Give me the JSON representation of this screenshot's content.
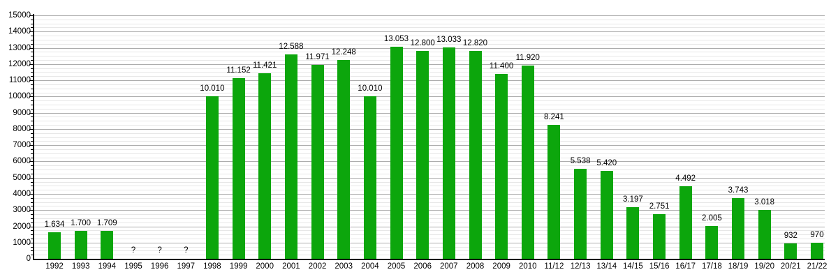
{
  "chart_data": {
    "type": "bar",
    "title": "",
    "xlabel": "",
    "ylabel": "",
    "categories": [
      "1992",
      "1993",
      "1994",
      "1995",
      "1996",
      "1997",
      "1998",
      "1999",
      "2000",
      "2001",
      "2002",
      "2003",
      "2004",
      "2005",
      "2006",
      "2007",
      "2008",
      "2009",
      "2010",
      "11/12",
      "12/13",
      "13/14",
      "14/15",
      "15/16",
      "16/17",
      "17/18",
      "18/19",
      "19/20",
      "20/21",
      "21/22"
    ],
    "values": [
      1634,
      1700,
      1709,
      null,
      null,
      null,
      10010,
      11152,
      11421,
      12588,
      11971,
      12248,
      10010,
      13053,
      12800,
      13033,
      12820,
      11400,
      11920,
      8241,
      5538,
      5420,
      3197,
      2751,
      4492,
      2005,
      3743,
      3018,
      932,
      970
    ],
    "value_labels": [
      "1.634",
      "1.700",
      "1.709",
      "?",
      "?",
      "?",
      "10.010",
      "11.152",
      "11.421",
      "12.588",
      "11.971",
      "12.248",
      "10.010",
      "13.053",
      "12.800",
      "13.033",
      "12.820",
      "11.400",
      "11.920",
      "8.241",
      "5.538",
      "5.420",
      "3.197",
      "2.751",
      "4.492",
      "2.005",
      "3.743",
      "3.018",
      "932",
      "970"
    ],
    "missing_value_label": "?",
    "ylim": [
      0,
      15000
    ],
    "y_major_step": 1000,
    "y_minor_step": 250,
    "y_tick_labels": [
      "0",
      "1000",
      "2000",
      "3000",
      "4000",
      "5000",
      "6000",
      "7000",
      "8000",
      "9000",
      "10000",
      "11000",
      "12000",
      "13000",
      "14000",
      "15000"
    ],
    "grid": true,
    "legend": null,
    "colors": {
      "bar": "#0ca60c",
      "major_grid": "#adadad",
      "minor_grid": "#e7e7e7",
      "axis": "#000000",
      "text": "#000000"
    }
  }
}
